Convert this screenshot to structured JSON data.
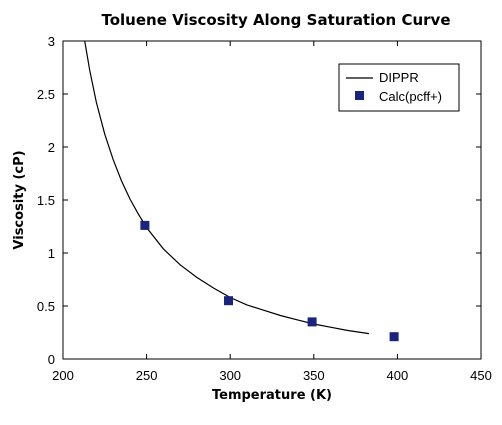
{
  "chart_data": {
    "type": "scatter",
    "title": "Toluene Viscosity Along Saturation Curve",
    "xlabel": "Temperature (K)",
    "ylabel": "Viscosity (cP)",
    "xlim": [
      200,
      450
    ],
    "ylim": [
      0,
      3
    ],
    "xticks": [
      200,
      250,
      300,
      350,
      400,
      450
    ],
    "yticks": [
      0,
      0.5,
      1,
      1.5,
      2,
      2.5,
      3
    ],
    "xtick_labels": [
      "200",
      "250",
      "300",
      "350",
      "400",
      "450"
    ],
    "ytick_labels": [
      "0",
      "0.5",
      "1",
      "1.5",
      "2",
      "2.5",
      "3"
    ],
    "grid": false,
    "legend_position": "top-right",
    "colors": {
      "line": "#000000",
      "marker": "#1a237e"
    },
    "series": [
      {
        "name": "DIPPR",
        "kind": "line",
        "x": [
          213,
          216,
          220,
          225,
          230,
          235,
          240,
          245,
          250,
          260,
          270,
          280,
          290,
          300,
          310,
          320,
          330,
          340,
          350,
          360,
          370,
          383
        ],
        "y": [
          3.0,
          2.72,
          2.42,
          2.12,
          1.88,
          1.68,
          1.51,
          1.37,
          1.24,
          1.04,
          0.89,
          0.77,
          0.67,
          0.58,
          0.51,
          0.46,
          0.41,
          0.37,
          0.33,
          0.3,
          0.27,
          0.24
        ]
      },
      {
        "name": "Calc(pcff+)",
        "kind": "marker",
        "x": [
          249,
          299,
          349,
          398
        ],
        "y": [
          1.26,
          0.55,
          0.35,
          0.21
        ]
      }
    ]
  }
}
